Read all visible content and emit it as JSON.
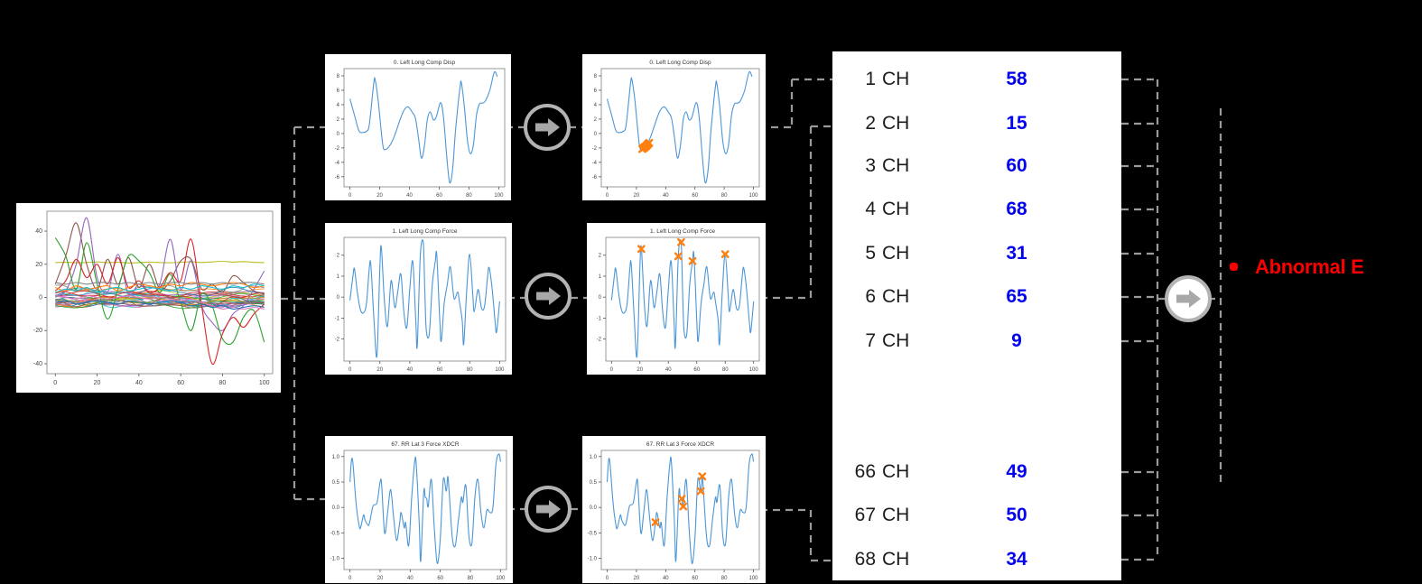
{
  "abnormal": {
    "bullet": "•",
    "label": "Abnormal E"
  },
  "colors": {
    "signal_blue": "#4c96d7",
    "marker_orange": "#ff7f0e",
    "value_blue": "#0202ee",
    "abnormal_red": "#fb0000",
    "dash_gray": "#9a9a9a",
    "arrow_gray": "#a8a8a8",
    "arrow_ring": "#b3b3b3"
  },
  "panel": {
    "rows": [
      {
        "index": "1",
        "unit": "CH",
        "value": "58"
      },
      {
        "index": "2",
        "unit": "CH",
        "value": "15"
      },
      {
        "index": "3",
        "unit": "CH",
        "value": "60"
      },
      {
        "index": "4",
        "unit": "CH",
        "value": "68"
      },
      {
        "index": "5",
        "unit": "CH",
        "value": "31"
      },
      {
        "index": "6",
        "unit": "CH",
        "value": "65"
      },
      {
        "index": "7",
        "unit": "CH",
        "value": "9"
      },
      {
        "index": "66",
        "unit": "CH",
        "value": "49"
      },
      {
        "index": "67",
        "unit": "CH",
        "value": "50"
      },
      {
        "index": "68",
        "unit": "CH",
        "value": "34"
      }
    ]
  },
  "chart_data": {
    "overview": {
      "type": "line",
      "title": "",
      "xtick_values": [
        0,
        20,
        40,
        60,
        80,
        100
      ],
      "ytick_values": [
        40,
        20,
        0,
        -20,
        -40
      ],
      "ytick_labels": [
        "40",
        "20",
        "0",
        "-20",
        "-40"
      ],
      "xlim": [
        -4,
        104
      ],
      "ylim": [
        -46,
        52
      ],
      "series": [
        {
          "color": "#bcbd22",
          "values": [
            21,
            21.2,
            20.9,
            21.1,
            21.4,
            21.0,
            21.2,
            20.8,
            21.0,
            21.3,
            21.1,
            20.9,
            21.2,
            21.5,
            21.1,
            21.4,
            21.8,
            21.3,
            21.6,
            21.2,
            21.0
          ]
        },
        {
          "color": "#8c564b",
          "values": [
            8,
            25,
            45,
            20,
            5,
            23,
            8,
            24,
            6,
            20,
            5,
            10,
            22,
            23,
            5,
            8,
            3,
            13,
            9,
            4,
            2
          ]
        },
        {
          "color": "#9467bd",
          "values": [
            1,
            4,
            20,
            48,
            12,
            3,
            26,
            2,
            8,
            3,
            8,
            35,
            5,
            22,
            -5,
            -15,
            -20,
            -10,
            -5,
            5,
            16
          ]
        },
        {
          "color": "#2ca02c",
          "values": [
            36,
            25,
            5,
            33,
            8,
            -13,
            5,
            25,
            22,
            15,
            3,
            14,
            -3,
            -20,
            2,
            -5,
            -25,
            -27,
            -12,
            -8,
            -27
          ]
        },
        {
          "color": "#d62728",
          "values": [
            4,
            10,
            23,
            12,
            20,
            8,
            24,
            6,
            10,
            3,
            6,
            15,
            10,
            35,
            -5,
            -40,
            -22,
            -12,
            -18,
            -10,
            -4
          ]
        },
        {
          "color": "#ff7f0e",
          "values": [
            6,
            4,
            7,
            5,
            6,
            7,
            4,
            6,
            8,
            7,
            6,
            8,
            7,
            9,
            8,
            7,
            8,
            9,
            8,
            6,
            7
          ]
        },
        {
          "color": "#17becf",
          "values": [
            3,
            5,
            4,
            6,
            3,
            5,
            6,
            4,
            5,
            6,
            5,
            4,
            6,
            5,
            7,
            6,
            5,
            7,
            6,
            8,
            7
          ]
        },
        {
          "color": "#e377c2",
          "values": [
            1,
            0,
            -1,
            1,
            0,
            -1,
            0,
            1,
            0,
            -1,
            0,
            -1,
            -2,
            -1,
            -3,
            -5,
            -7,
            -6,
            -7,
            -6,
            -7
          ]
        },
        {
          "color": "#7f7f7f",
          "values": [
            9,
            8,
            9,
            8,
            9,
            9,
            8,
            9,
            8,
            9,
            8,
            9,
            9,
            8,
            9,
            8,
            9,
            8,
            9,
            9,
            8
          ]
        },
        {
          "color": "#1f77b4",
          "values": [
            -3,
            -2,
            -4,
            -3,
            -2,
            -3,
            -4,
            -2,
            -3,
            -4,
            -3,
            -2,
            -3,
            -5,
            -4,
            -6,
            -5,
            -7,
            -6,
            -5,
            -6
          ]
        }
      ],
      "series_x_step": 5,
      "clutter": {
        "count": 26,
        "seed": 9,
        "base_range": 5,
        "amp": 2.2,
        "palette": [
          "#1f77b4",
          "#ff7f0e",
          "#2ca02c",
          "#d62728",
          "#9467bd",
          "#8c564b",
          "#e377c2",
          "#7f7f7f",
          "#bcbd22",
          "#17becf"
        ]
      }
    },
    "channels": [
      {
        "id": "ch0",
        "title": "0. Left Long Comp Disp",
        "xtick_values": [
          0,
          20,
          40,
          60,
          80,
          100
        ],
        "ytick_values": [
          8,
          6,
          4,
          2,
          0,
          -2,
          -4,
          -6
        ],
        "ytick_labels": [
          "8",
          "6",
          "4",
          "2",
          "0",
          "-2",
          "-4",
          "-6"
        ],
        "xlim": [
          -4,
          104
        ],
        "ylim": [
          -7.4,
          9.0
        ],
        "points": [
          [
            0,
            4.8
          ],
          [
            3,
            2.6
          ],
          [
            6,
            0.4
          ],
          [
            9,
            0.15
          ],
          [
            11,
            0.3
          ],
          [
            13,
            1.2
          ],
          [
            16,
            7.0
          ],
          [
            17,
            7.4
          ],
          [
            19,
            4.5
          ],
          [
            22,
            -1.5
          ],
          [
            24,
            -2.2
          ],
          [
            27,
            -1.6
          ],
          [
            30,
            -0.3
          ],
          [
            33,
            1.5
          ],
          [
            36,
            3.1
          ],
          [
            39,
            3.7
          ],
          [
            42,
            2.9
          ],
          [
            44,
            2.1
          ],
          [
            46,
            -0.5
          ],
          [
            48,
            -3.4
          ],
          [
            50,
            -1.8
          ],
          [
            52,
            1.9
          ],
          [
            54,
            3.0
          ],
          [
            56,
            1.9
          ],
          [
            58,
            2.3
          ],
          [
            61,
            4.3
          ],
          [
            63,
            2.0
          ],
          [
            65,
            -3.0
          ],
          [
            67,
            -6.8
          ],
          [
            69,
            -5.0
          ],
          [
            71,
            0.5
          ],
          [
            74,
            6.5
          ],
          [
            75,
            6.9
          ],
          [
            77,
            3.5
          ],
          [
            79,
            -1.0
          ],
          [
            81,
            -2.8
          ],
          [
            83,
            -1.5
          ],
          [
            85,
            2.5
          ],
          [
            87,
            4.1
          ],
          [
            89,
            4.2
          ],
          [
            91,
            4.5
          ],
          [
            94,
            6.0
          ],
          [
            97,
            8.5
          ],
          [
            99,
            7.9
          ]
        ],
        "markers": [
          [
            24,
            -2.15
          ],
          [
            24.7,
            -2.05
          ],
          [
            25.4,
            -1.95
          ],
          [
            26,
            -1.85
          ],
          [
            26.6,
            -1.75
          ],
          [
            27.3,
            -1.6
          ],
          [
            28,
            -1.45
          ],
          [
            28.7,
            -1.3
          ]
        ]
      },
      {
        "id": "ch1",
        "title": "1. Left Long Comp Force",
        "xtick_values": [
          0,
          20,
          40,
          60,
          80,
          100
        ],
        "ytick_values": [
          2,
          1,
          0,
          -1,
          -2
        ],
        "ytick_labels": [
          "2",
          "1",
          "0",
          "-1",
          "-2"
        ],
        "xlim": [
          -4,
          104
        ],
        "ylim": [
          -3.05,
          2.85
        ],
        "points": [
          [
            0,
            -0.15
          ],
          [
            2,
            1.0
          ],
          [
            3,
            1.35
          ],
          [
            5,
            0.2
          ],
          [
            7,
            -0.6
          ],
          [
            9,
            -0.75
          ],
          [
            11,
            -0.3
          ],
          [
            13,
            1.45
          ],
          [
            14,
            1.5
          ],
          [
            16,
            -1.0
          ],
          [
            18,
            -2.8
          ],
          [
            20,
            1.5
          ],
          [
            21,
            2.35
          ],
          [
            23,
            -0.2
          ],
          [
            25,
            -1.4
          ],
          [
            27,
            0.5
          ],
          [
            28,
            0.7
          ],
          [
            30,
            -0.5
          ],
          [
            32,
            0.3
          ],
          [
            34,
            1.1
          ],
          [
            36,
            -0.7
          ],
          [
            38,
            -1.45
          ],
          [
            40,
            0.4
          ],
          [
            42,
            1.7
          ],
          [
            44,
            -1.2
          ],
          [
            45,
            -2.3
          ],
          [
            47,
            1.95
          ],
          [
            49,
            2.6
          ],
          [
            50,
            0.3
          ],
          [
            51,
            -1.6
          ],
          [
            53,
            -1.75
          ],
          [
            55,
            0.6
          ],
          [
            57,
            1.7
          ],
          [
            58,
            2.0
          ],
          [
            60,
            -1.1
          ],
          [
            61,
            -2.1
          ],
          [
            63,
            -0.3
          ],
          [
            65,
            0.6
          ],
          [
            67,
            1.45
          ],
          [
            69,
            0.2
          ],
          [
            70,
            -0.1
          ],
          [
            72,
            0.25
          ],
          [
            73,
            -0.15
          ],
          [
            75,
            -1.1
          ],
          [
            76,
            -2.25
          ],
          [
            78,
            0.3
          ],
          [
            80,
            2.05
          ],
          [
            82,
            0.2
          ],
          [
            83,
            -0.7
          ],
          [
            85,
            0.2
          ],
          [
            86,
            0.3
          ],
          [
            88,
            -0.55
          ],
          [
            90,
            -0.4
          ],
          [
            92,
            1.0
          ],
          [
            93,
            1.4
          ],
          [
            95,
            0.4
          ],
          [
            97,
            -1.2
          ],
          [
            98,
            -1.65
          ],
          [
            100,
            -0.2
          ]
        ],
        "markers": [
          [
            21,
            2.3
          ],
          [
            47,
            1.95
          ],
          [
            49,
            2.62
          ],
          [
            57,
            1.72
          ],
          [
            80,
            2.05
          ]
        ]
      },
      {
        "id": "ch67",
        "title": "67. RR Lat 3 Force XDCR",
        "xtick_values": [
          0,
          20,
          40,
          60,
          80,
          100
        ],
        "ytick_values": [
          1.0,
          0.5,
          0.0,
          -0.5,
          -1.0
        ],
        "ytick_labels": [
          "1.0",
          "0.5",
          "0.0",
          "-0.5",
          "-1.0"
        ],
        "xlim": [
          -4,
          104
        ],
        "ylim": [
          -1.22,
          1.12
        ],
        "points": [
          [
            0,
            0.5
          ],
          [
            1,
            0.93
          ],
          [
            2,
            0.85
          ],
          [
            4,
            0.1
          ],
          [
            6,
            -0.35
          ],
          [
            7,
            -0.4
          ],
          [
            9,
            -0.15
          ],
          [
            10,
            -0.25
          ],
          [
            12,
            -0.35
          ],
          [
            13,
            -0.3
          ],
          [
            15,
            0.0
          ],
          [
            16,
            0.05
          ],
          [
            18,
            0.1
          ],
          [
            20,
            0.5
          ],
          [
            21,
            0.45
          ],
          [
            23,
            -0.5
          ],
          [
            25,
            -0.1
          ],
          [
            27,
            0.35
          ],
          [
            29,
            -0.2
          ],
          [
            31,
            -0.65
          ],
          [
            33,
            -0.3
          ],
          [
            34,
            -0.1
          ],
          [
            36,
            -0.4
          ],
          [
            37,
            -0.3
          ],
          [
            39,
            -0.75
          ],
          [
            41,
            0.2
          ],
          [
            43,
            0.9
          ],
          [
            44,
            0.85
          ],
          [
            46,
            -0.3
          ],
          [
            47,
            -1.05
          ],
          [
            49,
            0.3
          ],
          [
            50,
            0.2
          ],
          [
            51,
            0.17
          ],
          [
            52,
            0.02
          ],
          [
            54,
            0.55
          ],
          [
            56,
            -0.4
          ],
          [
            58,
            -1.1
          ],
          [
            60,
            -0.6
          ],
          [
            62,
            0.55
          ],
          [
            64,
            0.32
          ],
          [
            65,
            0.61
          ],
          [
            66,
            0.25
          ],
          [
            68,
            -0.6
          ],
          [
            70,
            -0.75
          ],
          [
            72,
            -0.25
          ],
          [
            74,
            0.2
          ],
          [
            75,
            0.1
          ],
          [
            77,
            0.43
          ],
          [
            79,
            -0.55
          ],
          [
            81,
            -0.7
          ],
          [
            83,
            0.2
          ],
          [
            85,
            0.55
          ],
          [
            87,
            -0.1
          ],
          [
            89,
            -0.4
          ],
          [
            91,
            -0.05
          ],
          [
            93,
            -0.1
          ],
          [
            95,
            0.0
          ],
          [
            97,
            0.85
          ],
          [
            99,
            1.05
          ],
          [
            100,
            0.9
          ]
        ],
        "markers": [
          [
            33,
            -0.29
          ],
          [
            51,
            0.17
          ],
          [
            52,
            0.02
          ],
          [
            64,
            0.32
          ],
          [
            65,
            0.61
          ]
        ]
      }
    ]
  }
}
